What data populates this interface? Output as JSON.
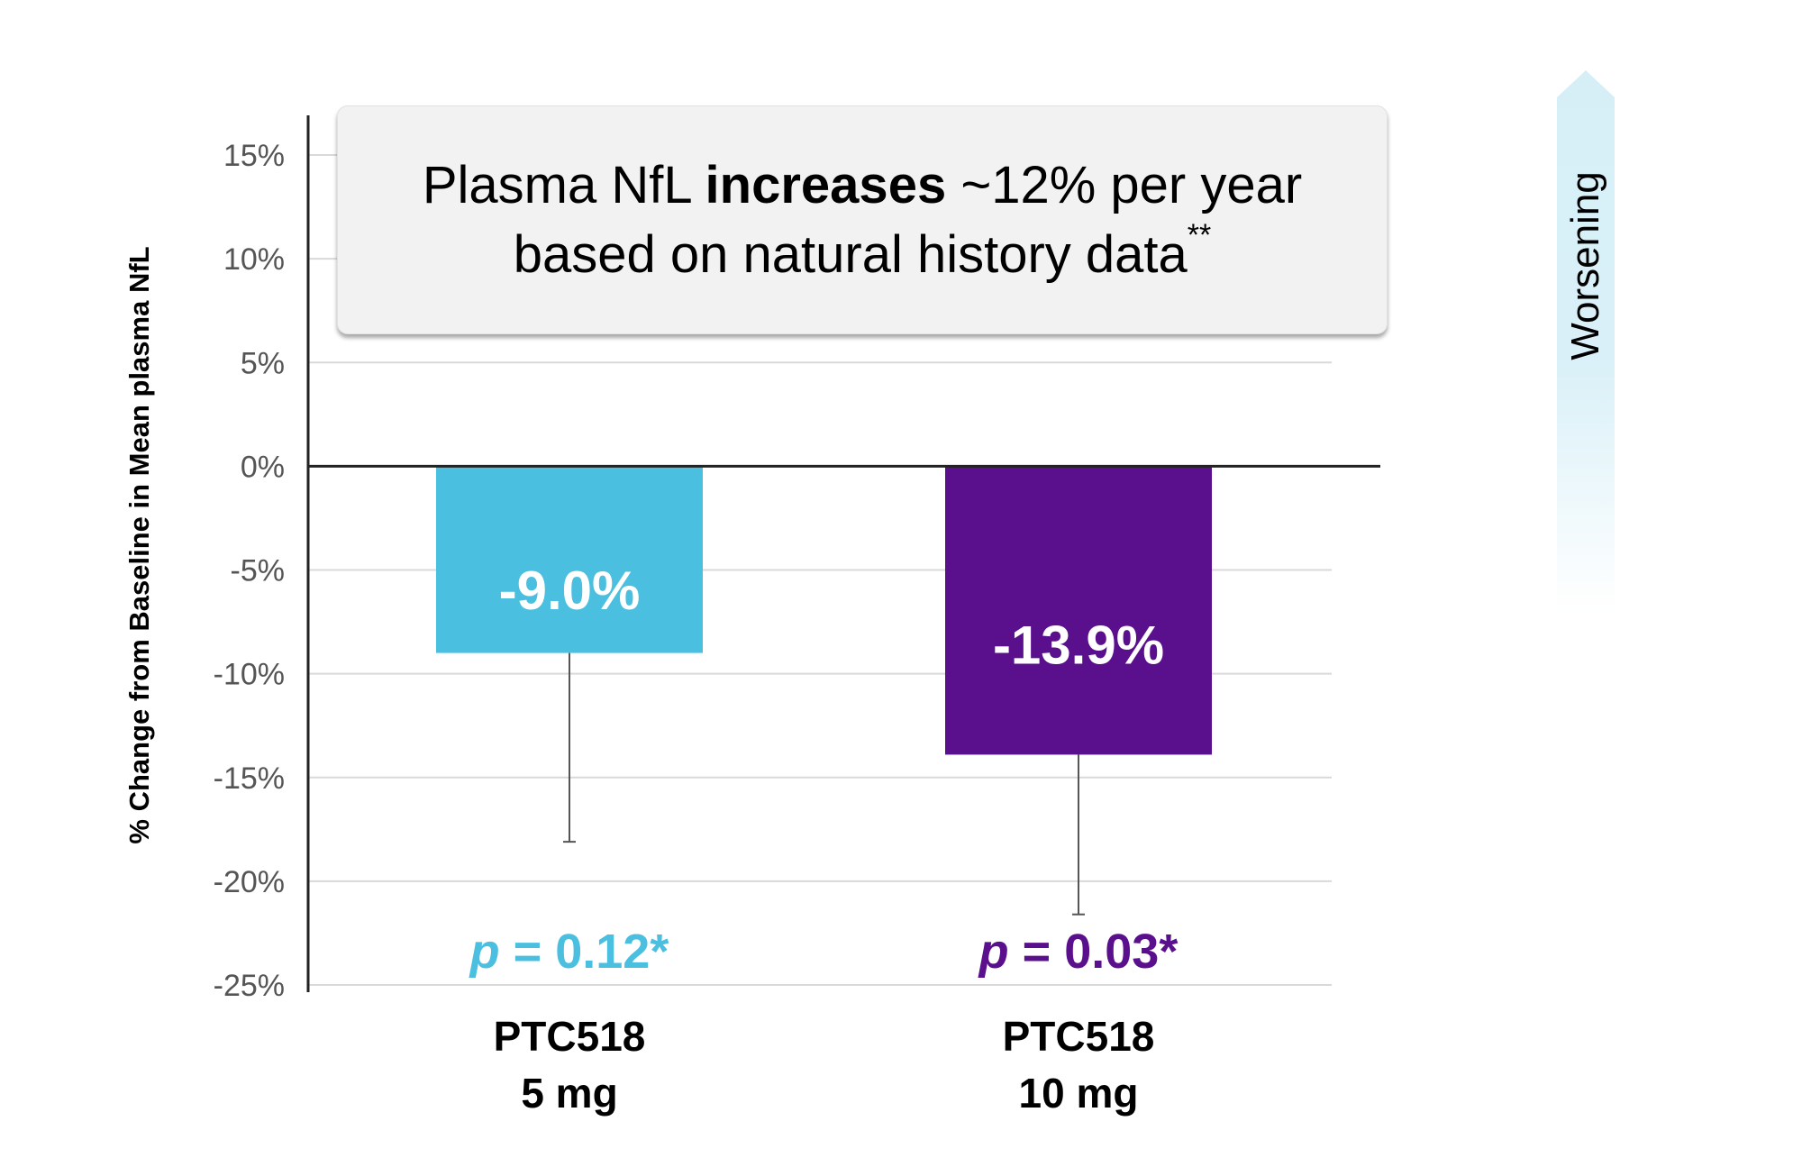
{
  "chart_data": {
    "type": "bar",
    "ylabel": "% Change from Baseline in Mean plasma NfL",
    "xlabel": "",
    "ylim": [
      -25,
      15
    ],
    "y_ticks": [
      15,
      10,
      5,
      0,
      -5,
      -10,
      -15,
      -20,
      -25
    ],
    "y_tick_labels": [
      "15%",
      "10%",
      "5%",
      "0%",
      "-5%",
      "-10%",
      "-15%",
      "-20%",
      "-25%"
    ],
    "grid": true,
    "categories": [
      {
        "line1": "PTC518",
        "line2": "5 mg"
      },
      {
        "line1": "PTC518",
        "line2": "10 mg"
      }
    ],
    "values": [
      -9.0,
      -13.9
    ],
    "error_lower": [
      -18.1,
      -21.6
    ],
    "value_labels": [
      "-9.0%",
      "-13.9%"
    ],
    "bar_colors": [
      "#4bbfe0",
      "#5a0f8c"
    ],
    "p_values": [
      {
        "p": "p",
        "rest": " = 0.12*",
        "color": "#4bbfe0"
      },
      {
        "p": "p",
        "rest": " = 0.03*",
        "color": "#5a0f8c"
      }
    ]
  },
  "callout": {
    "line1_pre": "Plasma NfL ",
    "line1_bold": "increases",
    "line1_post": " ~12% per year",
    "line2": "based on natural history data",
    "line2_sup": "**"
  },
  "direction_arrow": {
    "label": "Worsening",
    "color": "#d6eff7"
  }
}
